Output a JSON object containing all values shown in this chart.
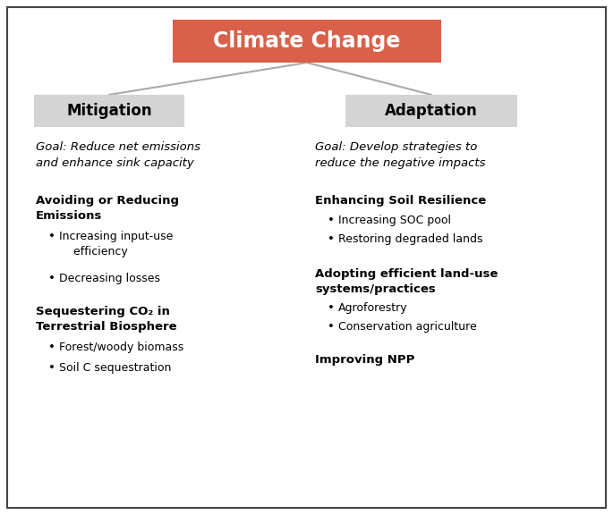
{
  "title": "Climate Change",
  "title_bg": "#d9604a",
  "title_text_color": "#ffffff",
  "sub_box_bg": "#d4d4d4",
  "sub_box_text_color": "#000000",
  "left_label": "Mitigation",
  "right_label": "Adaptation",
  "left_goal": "Goal: Reduce net emissions\nand enhance sink capacity",
  "right_goal": "Goal: Develop strategies to\nreduce the negative impacts",
  "left_sections": [
    {
      "heading": "Avoiding or Reducing\nEmissions",
      "bullets": [
        "Increasing input-use\n    efficiency",
        "Decreasing losses"
      ]
    },
    {
      "heading": "Sequestering CO₂ in\nTerrestrial Biosphere",
      "bullets": [
        "Forest/woody biomass",
        "Soil C sequestration"
      ]
    }
  ],
  "right_sections": [
    {
      "heading": "Enhancing Soil Resilience",
      "bullets": [
        "Increasing SOC pool",
        "Restoring degraded lands"
      ]
    },
    {
      "heading": "Adopting efficient land-use\nsystems/practices",
      "bullets": [
        "Agroforestry",
        "Conservation agriculture"
      ]
    },
    {
      "heading": "Improving NPP",
      "bullets": []
    }
  ],
  "border_color": "#444444",
  "line_color": "#aaaaaa",
  "background_color": "#ffffff",
  "figsize": [
    6.85,
    5.76
  ],
  "dpi": 100
}
